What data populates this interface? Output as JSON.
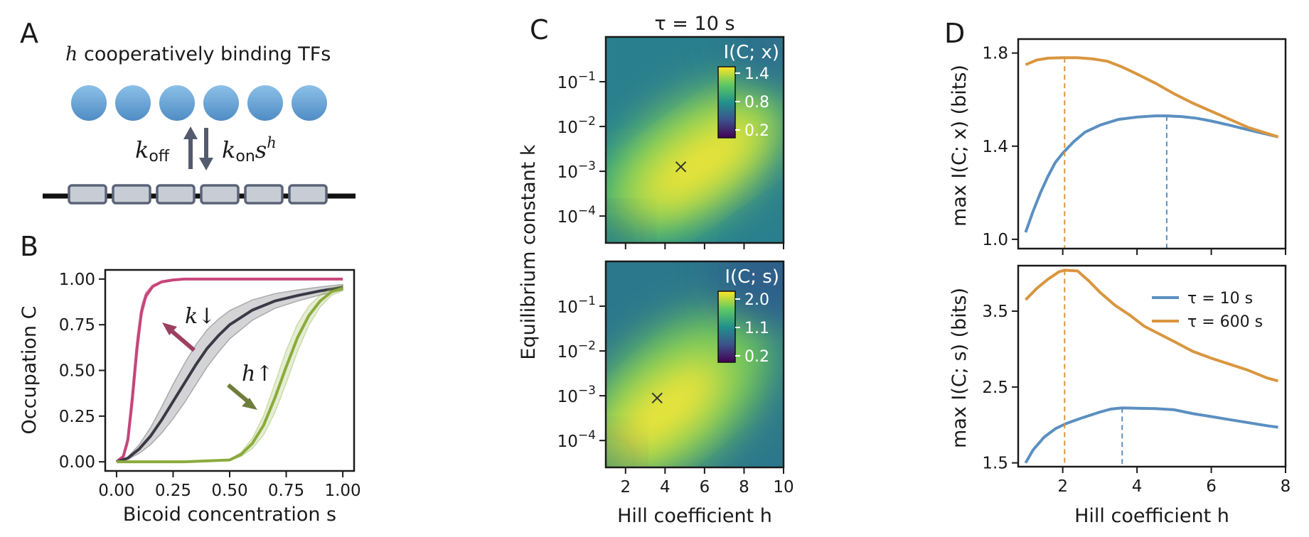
{
  "panels": {
    "A": {
      "letter": "A",
      "title_h": "h",
      "title": "cooperatively binding TFs",
      "k_off": "k",
      "k_off_sub": "off",
      "k_on": "k",
      "k_on_sub": "on",
      "k_on_s": "s",
      "k_on_exp": "h",
      "n_tfs": 6,
      "n_sites": 6,
      "colors": {
        "tf": "#6aa5d6",
        "site": "#c8ccd4",
        "site_border": "#5a6478",
        "arrow": "#555b6e"
      }
    },
    "B": {
      "letter": "B",
      "k_annot": "k↓",
      "h_annot": "h↑"
    },
    "C": {
      "letter": "C",
      "title": "τ = 10 s",
      "top_colorbar_title": "I(C; x)",
      "top_colorbar_ticks": [
        "1.4",
        "0.8",
        "0.2"
      ],
      "bottom_colorbar_title": "I(C; s)",
      "bottom_colorbar_ticks": [
        "2.0",
        "1.1",
        "0.2"
      ],
      "ylabel": "Equilibrium constant k",
      "xlabel": "Hill coefficient h",
      "ytick_base": "10",
      "ytick_exps": [
        "−1",
        "−2",
        "−3",
        "−4"
      ],
      "xticks": [
        "2",
        "4",
        "6",
        "8",
        "10"
      ]
    },
    "D": {
      "letter": "D"
    }
  },
  "chart_data": [
    {
      "id": "B",
      "type": "line",
      "xlabel": "Bicoid concentration s",
      "ylabel": "Occupation C",
      "xlim": [
        -0.05,
        1.05
      ],
      "ylim": [
        -0.05,
        1.05
      ],
      "xticks": [
        "0.00",
        "0.25",
        "0.50",
        "0.75",
        "1.00"
      ],
      "yticks": [
        "0.00",
        "0.25",
        "0.50",
        "0.75",
        "1.00"
      ],
      "series": [
        {
          "color": "#c7457a",
          "x": [
            0,
            0.03,
            0.05,
            0.07,
            0.09,
            0.11,
            0.13,
            0.16,
            0.2,
            0.25,
            0.3,
            0.4,
            0.6,
            1.0
          ],
          "y": [
            0,
            0.03,
            0.12,
            0.35,
            0.62,
            0.82,
            0.91,
            0.96,
            0.985,
            0.995,
            1.0,
            1.0,
            1.0,
            1.0
          ],
          "band": 0.07
        },
        {
          "color": "#3a3a46",
          "x": [
            0,
            0.05,
            0.1,
            0.15,
            0.2,
            0.25,
            0.3,
            0.35,
            0.4,
            0.45,
            0.5,
            0.6,
            0.7,
            0.8,
            0.9,
            1.0
          ],
          "y": [
            0,
            0.02,
            0.07,
            0.14,
            0.23,
            0.33,
            0.43,
            0.53,
            0.62,
            0.69,
            0.75,
            0.83,
            0.88,
            0.91,
            0.935,
            0.955
          ],
          "band": 0.11
        },
        {
          "color": "#8aab3c",
          "x": [
            0,
            0.3,
            0.5,
            0.55,
            0.6,
            0.65,
            0.7,
            0.75,
            0.8,
            0.85,
            0.9,
            0.95,
            1.0
          ],
          "y": [
            0,
            0,
            0.01,
            0.04,
            0.1,
            0.2,
            0.35,
            0.52,
            0.68,
            0.8,
            0.88,
            0.93,
            0.95
          ],
          "band": 0.09
        }
      ]
    },
    {
      "id": "C-top",
      "type": "heatmap",
      "xlim": [
        1,
        10
      ],
      "ylim_log10": [
        -4.6,
        0
      ],
      "colorbar_range": [
        0.2,
        1.5
      ],
      "optimum": {
        "h": 4.8,
        "log10k": -2.9
      }
    },
    {
      "id": "C-bottom",
      "type": "heatmap",
      "xlim": [
        1,
        10
      ],
      "ylim_log10": [
        -4.6,
        0
      ],
      "colorbar_range": [
        0.2,
        2.2
      ],
      "optimum": {
        "h": 3.6,
        "log10k": -3.05
      }
    },
    {
      "id": "D-top",
      "type": "line",
      "ylabel": "max I(C; x) (bits)",
      "xlim": [
        0.8,
        8.0
      ],
      "ylim": [
        0.96,
        1.86
      ],
      "yticks": [
        1.0,
        1.4,
        1.8
      ],
      "series": [
        {
          "name": "τ = 10 s",
          "color": "#5b8fc0",
          "x": [
            1.0,
            1.2,
            1.4,
            1.6,
            1.8,
            2.0,
            2.3,
            2.6,
            3.0,
            3.5,
            4.0,
            4.5,
            4.8,
            5.2,
            5.6,
            6.0,
            6.5,
            7.0,
            7.4,
            7.8
          ],
          "y": [
            1.03,
            1.12,
            1.2,
            1.27,
            1.33,
            1.37,
            1.42,
            1.46,
            1.49,
            1.515,
            1.525,
            1.53,
            1.53,
            1.527,
            1.52,
            1.508,
            1.49,
            1.47,
            1.455,
            1.44
          ],
          "peak_h": 4.8
        },
        {
          "name": "τ = 600 s",
          "color": "#d9963f",
          "x": [
            1.0,
            1.3,
            1.6,
            2.0,
            2.4,
            2.8,
            3.2,
            3.6,
            4.0,
            4.5,
            5.0,
            5.5,
            6.0,
            6.5,
            7.0,
            7.4,
            7.8
          ],
          "y": [
            1.75,
            1.77,
            1.778,
            1.78,
            1.78,
            1.775,
            1.765,
            1.74,
            1.71,
            1.67,
            1.625,
            1.585,
            1.55,
            1.515,
            1.48,
            1.46,
            1.44
          ],
          "peak_h": 2.05
        }
      ]
    },
    {
      "id": "D-bottom",
      "type": "line",
      "ylabel": "max I(C; s) (bits)",
      "xlabel": "Hill coefficient h",
      "xlim": [
        0.8,
        8.0
      ],
      "ylim": [
        1.45,
        4.1
      ],
      "xticks": [
        2,
        4,
        6,
        8
      ],
      "yticks": [
        1.5,
        2.5,
        3.5
      ],
      "series": [
        {
          "name": "τ = 10 s",
          "color": "#5b8fc0",
          "x": [
            1.0,
            1.2,
            1.5,
            1.8,
            2.1,
            2.5,
            3.0,
            3.3,
            3.6,
            4.0,
            4.5,
            5.0,
            5.5,
            6.0,
            6.5,
            7.0,
            7.5,
            7.8
          ],
          "y": [
            1.5,
            1.67,
            1.84,
            1.95,
            2.02,
            2.09,
            2.17,
            2.21,
            2.225,
            2.22,
            2.215,
            2.2,
            2.15,
            2.11,
            2.07,
            2.03,
            1.99,
            1.97
          ],
          "peak_h": 3.6
        },
        {
          "name": "τ = 600 s",
          "color": "#d9963f",
          "x": [
            1.0,
            1.3,
            1.6,
            1.9,
            2.05,
            2.4,
            2.7,
            3.0,
            3.4,
            3.8,
            4.2,
            4.6,
            5.0,
            5.5,
            6.0,
            6.5,
            7.0,
            7.5,
            7.8
          ],
          "y": [
            3.65,
            3.8,
            3.92,
            4.02,
            4.04,
            4.03,
            3.9,
            3.75,
            3.58,
            3.45,
            3.3,
            3.2,
            3.1,
            2.97,
            2.88,
            2.8,
            2.72,
            2.62,
            2.58
          ],
          "peak_h": 2.05
        }
      ],
      "legend_position": "upper-right"
    }
  ]
}
